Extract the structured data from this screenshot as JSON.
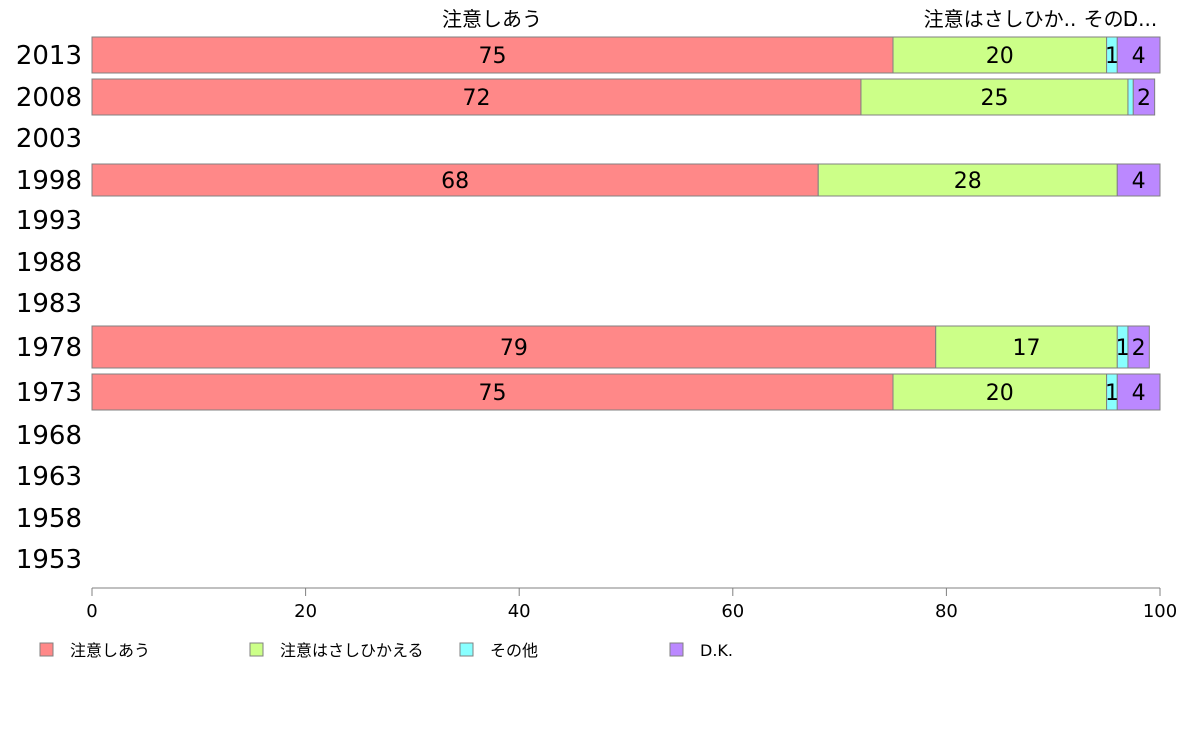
{
  "chart_data": {
    "type": "bar",
    "orientation": "horizontal",
    "stacked": true,
    "categories": [
      "2013",
      "2008",
      "2003",
      "1998",
      "1993",
      "1988",
      "1983",
      "1978",
      "1973",
      "1968",
      "1963",
      "1958",
      "1953"
    ],
    "series": [
      {
        "name": "注意しあう",
        "color": "#ff8888",
        "values": [
          75,
          72,
          null,
          68,
          null,
          null,
          null,
          79,
          75,
          null,
          null,
          null,
          null
        ]
      },
      {
        "name": "注意はさしひかえる",
        "color": "#ccff88",
        "values": [
          20,
          25,
          null,
          28,
          null,
          null,
          null,
          17,
          20,
          null,
          null,
          null,
          null
        ]
      },
      {
        "name": "その他",
        "color": "#88ffff",
        "values": [
          1,
          0.5,
          null,
          0,
          null,
          null,
          null,
          1,
          1,
          null,
          null,
          null,
          null
        ]
      },
      {
        "name": "D.K.",
        "color": "#bb88ff",
        "values": [
          4,
          2,
          null,
          4,
          null,
          null,
          null,
          2,
          4,
          null,
          null,
          null,
          null
        ]
      }
    ],
    "data_labels": [
      [
        "75",
        "20",
        "1",
        "4"
      ],
      [
        "72",
        "25",
        "",
        "2"
      ],
      [
        "",
        "",
        "",
        ""
      ],
      [
        "68",
        "28",
        "",
        "4"
      ],
      [
        "",
        "",
        "",
        ""
      ],
      [
        "",
        "",
        "",
        ""
      ],
      [
        "",
        "",
        "",
        ""
      ],
      [
        "79",
        "17",
        "1",
        "2"
      ],
      [
        "75",
        "20",
        "1",
        "4"
      ],
      [
        "",
        "",
        "",
        ""
      ],
      [
        "",
        "",
        "",
        ""
      ],
      [
        "",
        "",
        "",
        ""
      ],
      [
        "",
        "",
        "",
        ""
      ]
    ],
    "top_labels": [
      "注意しあう",
      "注意はさしひか..",
      "その..",
      "D..."
    ],
    "xlim": [
      0,
      100
    ],
    "xticks": [
      0,
      20,
      40,
      60,
      80,
      100
    ],
    "xtick_labels": [
      "0",
      "20",
      "40",
      "60",
      "80",
      "100"
    ],
    "grid": false,
    "legend_position": "bottom"
  }
}
